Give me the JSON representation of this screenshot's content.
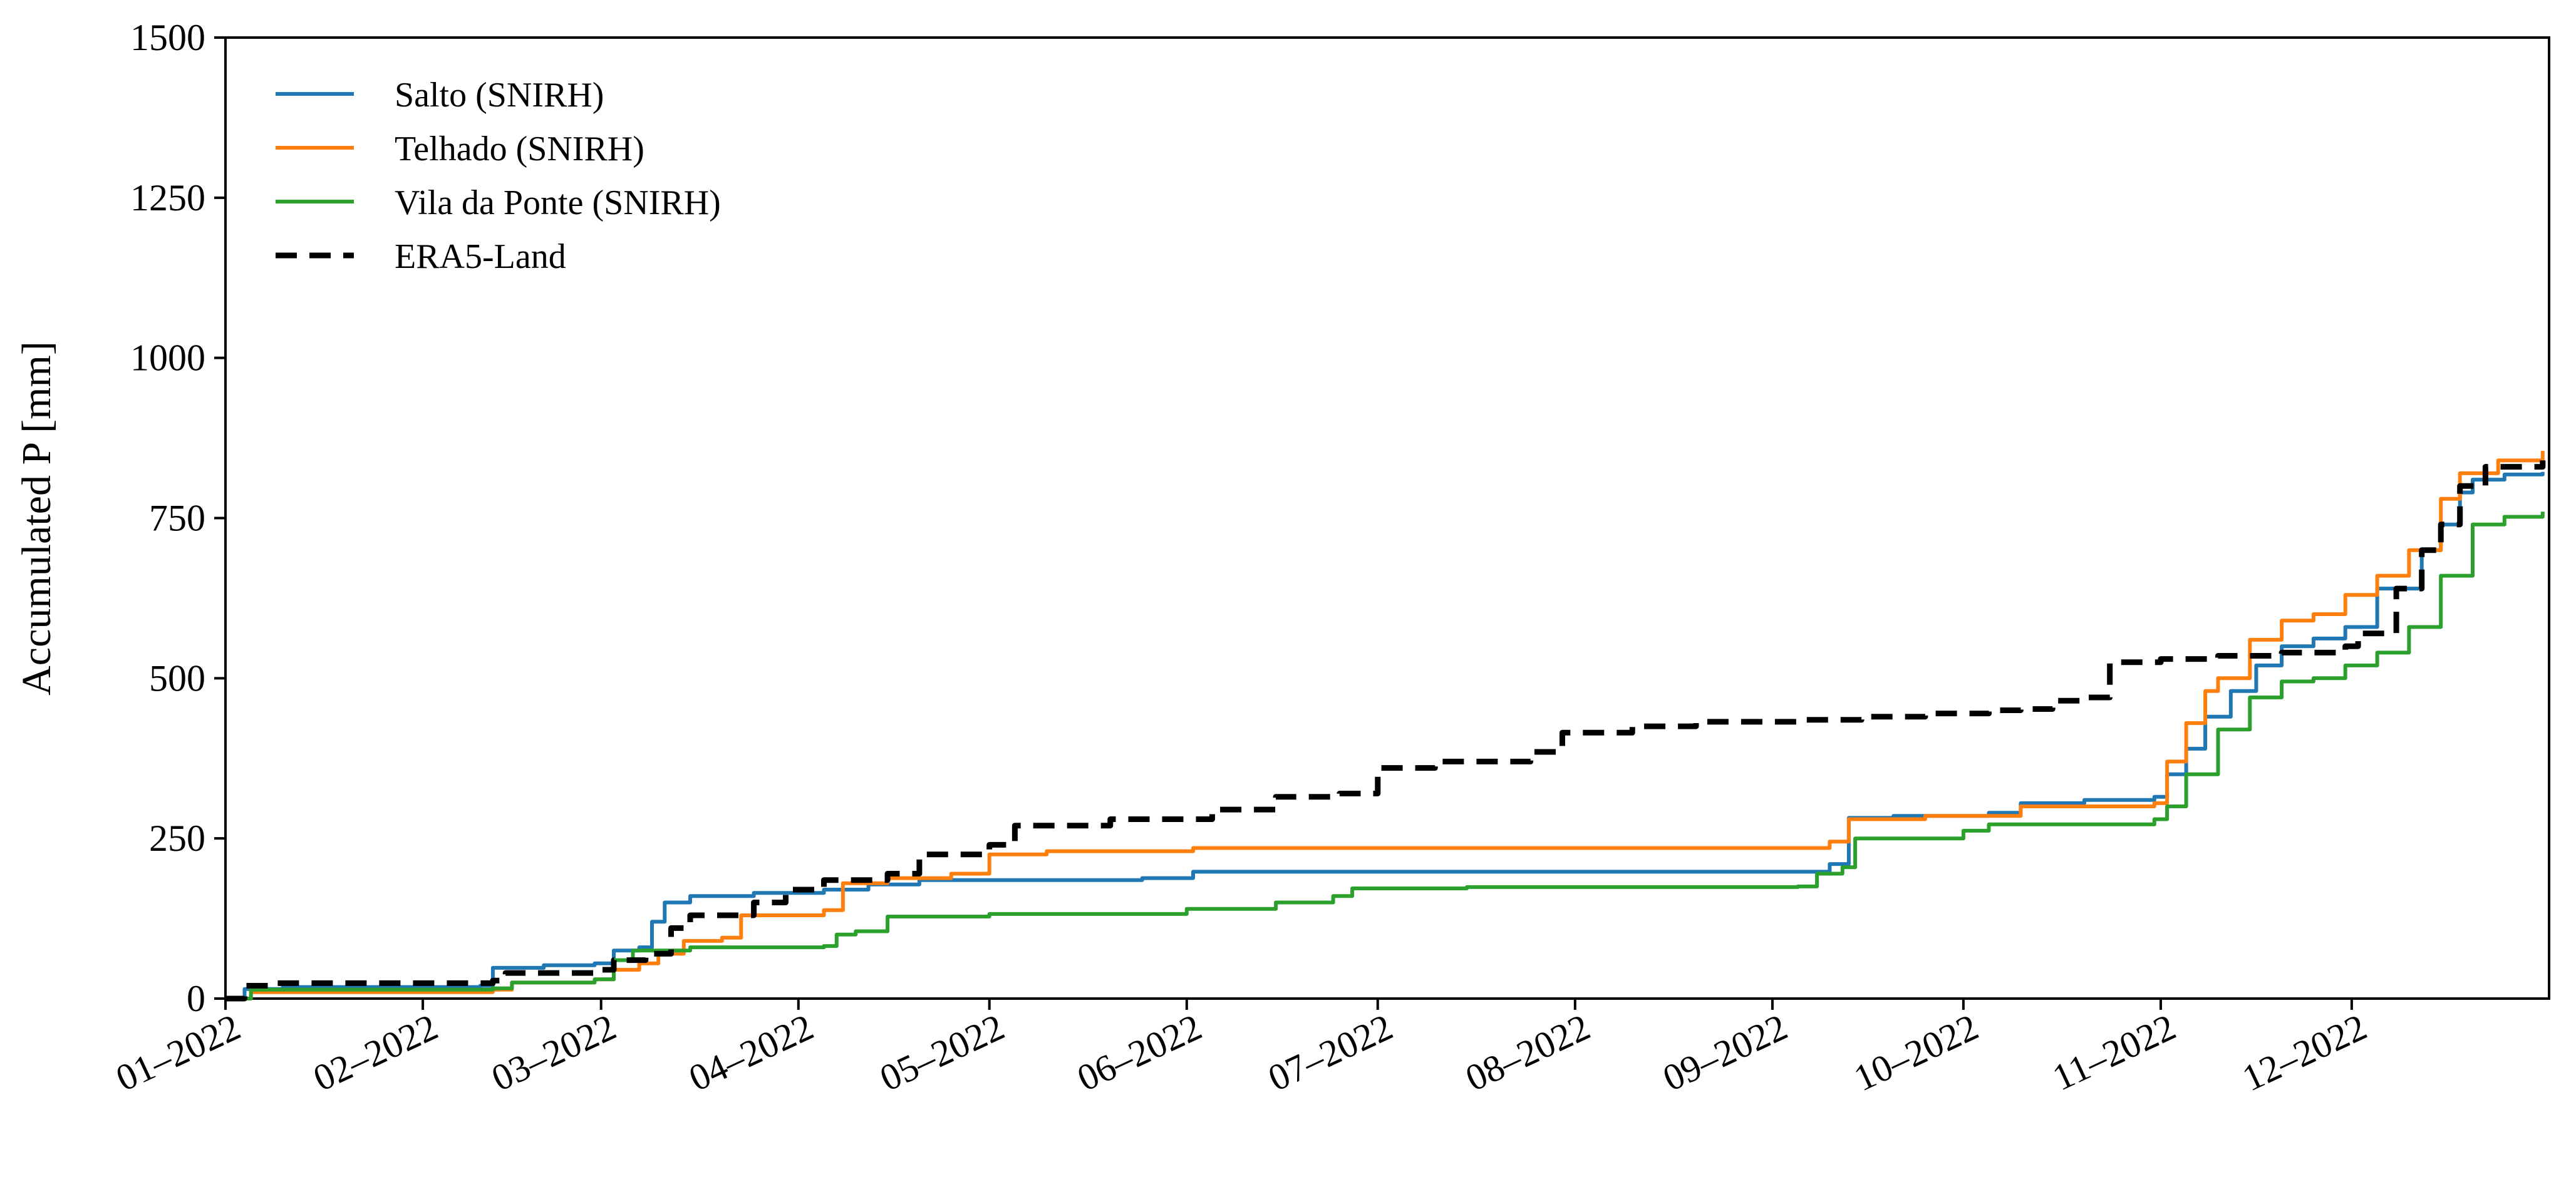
{
  "chart_data": {
    "type": "line",
    "title": "",
    "xlabel": "",
    "ylabel": "Accumulated P [mm]",
    "xlim": [
      "2022-01-01",
      "2022-12-31"
    ],
    "ylim": [
      0,
      1500
    ],
    "yticks": [
      0,
      250,
      500,
      750,
      1000,
      1250,
      1500
    ],
    "xticks": [
      {
        "date": "2022-01-01",
        "label": "01–2022"
      },
      {
        "date": "2022-02-01",
        "label": "02–2022"
      },
      {
        "date": "2022-03-01",
        "label": "03–2022"
      },
      {
        "date": "2022-04-01",
        "label": "04–2022"
      },
      {
        "date": "2022-05-01",
        "label": "05–2022"
      },
      {
        "date": "2022-06-01",
        "label": "06–2022"
      },
      {
        "date": "2022-07-01",
        "label": "07–2022"
      },
      {
        "date": "2022-08-01",
        "label": "08–2022"
      },
      {
        "date": "2022-09-01",
        "label": "09–2022"
      },
      {
        "date": "2022-10-01",
        "label": "10–2022"
      },
      {
        "date": "2022-11-01",
        "label": "11–2022"
      },
      {
        "date": "2022-12-01",
        "label": "12–2022"
      }
    ],
    "grid": false,
    "legend": "top-left",
    "series": [
      {
        "name": "Salto (SNIRH)",
        "color": "#1f77b4",
        "style": "solid",
        "points": [
          [
            "2022-01-01",
            0
          ],
          [
            "2022-01-04",
            15
          ],
          [
            "2022-01-10",
            18
          ],
          [
            "2022-02-10",
            20
          ],
          [
            "2022-02-12",
            48
          ],
          [
            "2022-02-20",
            52
          ],
          [
            "2022-02-28",
            55
          ],
          [
            "2022-03-03",
            75
          ],
          [
            "2022-03-07",
            80
          ],
          [
            "2022-03-09",
            120
          ],
          [
            "2022-03-11",
            150
          ],
          [
            "2022-03-15",
            160
          ],
          [
            "2022-03-25",
            165
          ],
          [
            "2022-04-05",
            170
          ],
          [
            "2022-04-12",
            178
          ],
          [
            "2022-04-20",
            185
          ],
          [
            "2022-05-25",
            188
          ],
          [
            "2022-06-02",
            198
          ],
          [
            "2022-09-05",
            198
          ],
          [
            "2022-09-10",
            210
          ],
          [
            "2022-09-13",
            282
          ],
          [
            "2022-09-20",
            285
          ],
          [
            "2022-10-05",
            290
          ],
          [
            "2022-10-10",
            305
          ],
          [
            "2022-10-20",
            310
          ],
          [
            "2022-10-31",
            315
          ],
          [
            "2022-11-02",
            350
          ],
          [
            "2022-11-05",
            390
          ],
          [
            "2022-11-08",
            440
          ],
          [
            "2022-11-12",
            480
          ],
          [
            "2022-11-16",
            520
          ],
          [
            "2022-11-20",
            550
          ],
          [
            "2022-11-25",
            562
          ],
          [
            "2022-11-30",
            580
          ],
          [
            "2022-12-05",
            640
          ],
          [
            "2022-12-12",
            700
          ],
          [
            "2022-12-15",
            740
          ],
          [
            "2022-12-18",
            790
          ],
          [
            "2022-12-20",
            810
          ],
          [
            "2022-12-25",
            818
          ],
          [
            "2022-12-31",
            822
          ],
          [
            "2022-12-31",
            822
          ]
        ]
      },
      {
        "name": "Telhado (SNIRH)",
        "color": "#ff7f0e",
        "style": "solid",
        "points": [
          [
            "2022-01-01",
            0
          ],
          [
            "2022-01-05",
            10
          ],
          [
            "2022-02-12",
            14
          ],
          [
            "2022-02-15",
            25
          ],
          [
            "2022-02-28",
            30
          ],
          [
            "2022-03-03",
            45
          ],
          [
            "2022-03-07",
            55
          ],
          [
            "2022-03-10",
            70
          ],
          [
            "2022-03-14",
            90
          ],
          [
            "2022-03-20",
            95
          ],
          [
            "2022-03-23",
            130
          ],
          [
            "2022-04-05",
            138
          ],
          [
            "2022-04-08",
            180
          ],
          [
            "2022-04-15",
            188
          ],
          [
            "2022-04-25",
            195
          ],
          [
            "2022-05-01",
            225
          ],
          [
            "2022-05-10",
            230
          ],
          [
            "2022-06-02",
            235
          ],
          [
            "2022-09-05",
            235
          ],
          [
            "2022-09-10",
            245
          ],
          [
            "2022-09-13",
            280
          ],
          [
            "2022-09-25",
            285
          ],
          [
            "2022-10-10",
            300
          ],
          [
            "2022-10-31",
            305
          ],
          [
            "2022-11-02",
            370
          ],
          [
            "2022-11-05",
            430
          ],
          [
            "2022-11-08",
            480
          ],
          [
            "2022-11-10",
            500
          ],
          [
            "2022-11-15",
            560
          ],
          [
            "2022-11-20",
            590
          ],
          [
            "2022-11-25",
            600
          ],
          [
            "2022-11-30",
            630
          ],
          [
            "2022-12-05",
            660
          ],
          [
            "2022-12-10",
            700
          ],
          [
            "2022-12-15",
            780
          ],
          [
            "2022-12-18",
            820
          ],
          [
            "2022-12-24",
            840
          ],
          [
            "2022-12-31",
            855
          ]
        ]
      },
      {
        "name": "Vila da Ponte (SNIRH)",
        "color": "#2ca02c",
        "style": "solid",
        "points": [
          [
            "2022-01-01",
            0
          ],
          [
            "2022-01-05",
            14
          ],
          [
            "2022-02-12",
            16
          ],
          [
            "2022-02-15",
            25
          ],
          [
            "2022-02-28",
            30
          ],
          [
            "2022-03-03",
            60
          ],
          [
            "2022-03-06",
            75
          ],
          [
            "2022-03-15",
            80
          ],
          [
            "2022-04-05",
            82
          ],
          [
            "2022-04-07",
            100
          ],
          [
            "2022-04-10",
            105
          ],
          [
            "2022-04-15",
            128
          ],
          [
            "2022-05-01",
            132
          ],
          [
            "2022-06-01",
            140
          ],
          [
            "2022-06-15",
            150
          ],
          [
            "2022-06-24",
            160
          ],
          [
            "2022-06-27",
            172
          ],
          [
            "2022-07-15",
            174
          ],
          [
            "2022-09-05",
            175
          ],
          [
            "2022-09-08",
            195
          ],
          [
            "2022-09-12",
            205
          ],
          [
            "2022-09-14",
            250
          ],
          [
            "2022-10-01",
            262
          ],
          [
            "2022-10-05",
            272
          ],
          [
            "2022-10-31",
            280
          ],
          [
            "2022-11-02",
            300
          ],
          [
            "2022-11-05",
            350
          ],
          [
            "2022-11-10",
            420
          ],
          [
            "2022-11-15",
            470
          ],
          [
            "2022-11-20",
            495
          ],
          [
            "2022-11-25",
            500
          ],
          [
            "2022-11-30",
            520
          ],
          [
            "2022-12-05",
            540
          ],
          [
            "2022-12-10",
            580
          ],
          [
            "2022-12-15",
            660
          ],
          [
            "2022-12-20",
            740
          ],
          [
            "2022-12-25",
            752
          ],
          [
            "2022-12-31",
            760
          ]
        ]
      },
      {
        "name": "ERA5-Land",
        "color": "#000000",
        "style": "dashed",
        "points": [
          [
            "2022-01-01",
            0
          ],
          [
            "2022-01-04",
            20
          ],
          [
            "2022-01-08",
            24
          ],
          [
            "2022-02-12",
            28
          ],
          [
            "2022-02-14",
            40
          ],
          [
            "2022-02-28",
            45
          ],
          [
            "2022-03-03",
            60
          ],
          [
            "2022-03-08",
            70
          ],
          [
            "2022-03-12",
            110
          ],
          [
            "2022-03-15",
            130
          ],
          [
            "2022-03-25",
            150
          ],
          [
            "2022-03-30",
            170
          ],
          [
            "2022-04-05",
            185
          ],
          [
            "2022-04-15",
            195
          ],
          [
            "2022-04-20",
            225
          ],
          [
            "2022-05-01",
            240
          ],
          [
            "2022-05-05",
            270
          ],
          [
            "2022-05-20",
            280
          ],
          [
            "2022-06-05",
            295
          ],
          [
            "2022-06-15",
            315
          ],
          [
            "2022-06-25",
            320
          ],
          [
            "2022-07-01",
            360
          ],
          [
            "2022-07-10",
            370
          ],
          [
            "2022-07-25",
            385
          ],
          [
            "2022-07-30",
            415
          ],
          [
            "2022-08-10",
            425
          ],
          [
            "2022-08-20",
            432
          ],
          [
            "2022-09-05",
            435
          ],
          [
            "2022-09-15",
            440
          ],
          [
            "2022-09-25",
            445
          ],
          [
            "2022-10-05",
            450
          ],
          [
            "2022-10-10",
            452
          ],
          [
            "2022-10-15",
            465
          ],
          [
            "2022-10-20",
            470
          ],
          [
            "2022-10-24",
            525
          ],
          [
            "2022-11-01",
            530
          ],
          [
            "2022-11-10",
            535
          ],
          [
            "2022-11-20",
            540
          ],
          [
            "2022-11-30",
            550
          ],
          [
            "2022-12-02",
            570
          ],
          [
            "2022-12-08",
            640
          ],
          [
            "2022-12-12",
            700
          ],
          [
            "2022-12-15",
            740
          ],
          [
            "2022-12-18",
            800
          ],
          [
            "2022-12-22",
            830
          ],
          [
            "2022-12-31",
            840
          ]
        ]
      }
    ]
  }
}
